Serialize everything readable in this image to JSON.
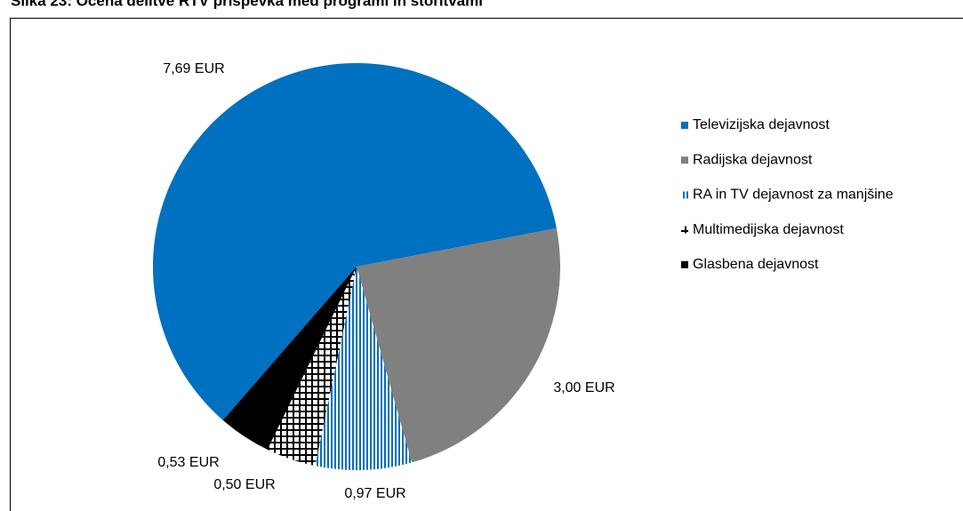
{
  "chart_data": {
    "type": "pie",
    "title": "Slika 23: Ocena delitve RTV prispevka med programi in storitvami",
    "categories": [
      "Televizijska dejavnost",
      "Radijska dejavnost",
      "RA in TV dejavnost za manjšine",
      "Multimedijska dejavnost",
      "Glasbena dejavnost"
    ],
    "values": [
      7.69,
      3.0,
      0.97,
      0.5,
      0.53
    ],
    "value_labels": [
      "7,69 EUR",
      "3,00 EUR",
      "0,97 EUR",
      "0,50 EUR",
      "0,53 EUR"
    ],
    "colors": [
      "#0070C0",
      "#808080",
      "#0070C0",
      "#000000",
      "#000000"
    ],
    "legend": "right"
  }
}
